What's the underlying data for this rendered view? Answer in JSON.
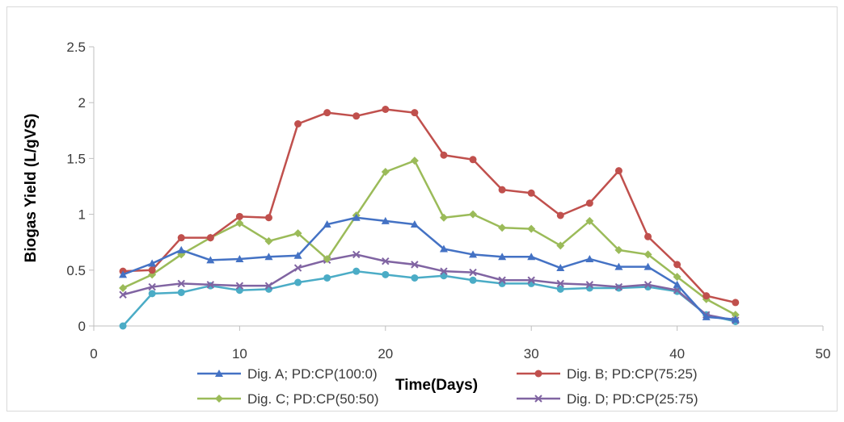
{
  "chart_data": {
    "type": "line",
    "xlabel": "Time(Days)",
    "ylabel": "Biogas Yield (L/gVS)",
    "xlim": [
      0,
      50
    ],
    "ylim": [
      0,
      2.5
    ],
    "xticks": [
      0,
      10,
      20,
      30,
      40,
      50
    ],
    "yticks": [
      0,
      0.5,
      1,
      1.5,
      2,
      2.5
    ],
    "ytick_labels": [
      "0",
      "0.5",
      "1",
      "1.5",
      "2",
      "2.5"
    ],
    "grid": false,
    "legend_position": "bottom",
    "x": [
      2,
      4,
      6,
      8,
      10,
      12,
      14,
      16,
      18,
      20,
      22,
      24,
      26,
      28,
      30,
      32,
      34,
      36,
      38,
      40,
      42,
      44
    ],
    "series": [
      {
        "name": "Dig. A; PD:CP(100:0)",
        "color": "#4472c4",
        "marker": "triangle",
        "values": [
          0.46,
          0.56,
          0.68,
          0.59,
          0.6,
          0.62,
          0.63,
          0.91,
          0.97,
          0.94,
          0.91,
          0.69,
          0.64,
          0.62,
          0.62,
          0.52,
          0.6,
          0.53,
          0.53,
          0.37,
          0.08,
          0.06
        ]
      },
      {
        "name": "Dig. B; PD:CP(75:25)",
        "color": "#c0504d",
        "marker": "circle",
        "values": [
          0.49,
          0.5,
          0.79,
          0.79,
          0.98,
          0.97,
          1.81,
          1.91,
          1.88,
          1.94,
          1.91,
          1.53,
          1.49,
          1.22,
          1.19,
          0.99,
          1.1,
          1.39,
          0.8,
          0.55,
          0.27,
          0.21
        ]
      },
      {
        "name": "Dig. C; PD:CP(50:50)",
        "color": "#9bbb59",
        "marker": "diamond",
        "values": [
          0.34,
          0.46,
          0.64,
          0.79,
          0.92,
          0.76,
          0.83,
          0.6,
          0.99,
          1.38,
          1.48,
          0.97,
          1.0,
          0.88,
          0.87,
          0.72,
          0.94,
          0.68,
          0.64,
          0.44,
          0.24,
          0.1
        ]
      },
      {
        "name": "Dig. D; PD:CP(25:75)",
        "color": "#8064a2",
        "marker": "x",
        "values": [
          0.28,
          0.35,
          0.38,
          0.37,
          0.36,
          0.36,
          0.52,
          0.59,
          0.64,
          0.58,
          0.55,
          0.49,
          0.48,
          0.41,
          0.41,
          0.38,
          0.37,
          0.35,
          0.37,
          0.32,
          0.1,
          0.05
        ]
      },
      {
        "color": "#4bacc6",
        "marker": "circle",
        "values": [
          0.0,
          0.29,
          0.3,
          0.36,
          0.32,
          0.33,
          0.39,
          0.43,
          0.49,
          0.46,
          0.43,
          0.45,
          0.41,
          0.38,
          0.38,
          0.33,
          0.34,
          0.34,
          0.35,
          0.31,
          0.1,
          0.04
        ]
      }
    ]
  }
}
